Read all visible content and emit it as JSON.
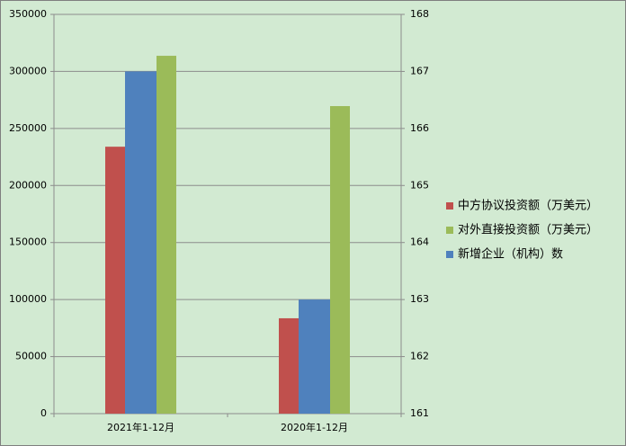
{
  "chart_data": {
    "type": "bar",
    "categories": [
      "2021年1-12月",
      "2020年1-12月"
    ],
    "series": [
      {
        "name": "中方协议投资额（万美元）",
        "color": "#c0504d",
        "values": [
          234000,
          83600
        ]
      },
      {
        "name": "对外直接投资额（万美元）",
        "color": "#9bbb59",
        "values": [
          313700,
          269600
        ]
      },
      {
        "name": "新增企业（机构）数",
        "color": "#4f81bd",
        "values": [
          167,
          163
        ],
        "axis": "y2"
      }
    ],
    "ylim": [
      0,
      350000
    ],
    "yticks": [
      0,
      50000,
      100000,
      150000,
      200000,
      250000,
      300000,
      350000
    ],
    "y2lim": [
      161,
      168
    ],
    "y2ticks": [
      161,
      162,
      163,
      164,
      165,
      166,
      167,
      168
    ],
    "grid": true,
    "legend": "right"
  }
}
